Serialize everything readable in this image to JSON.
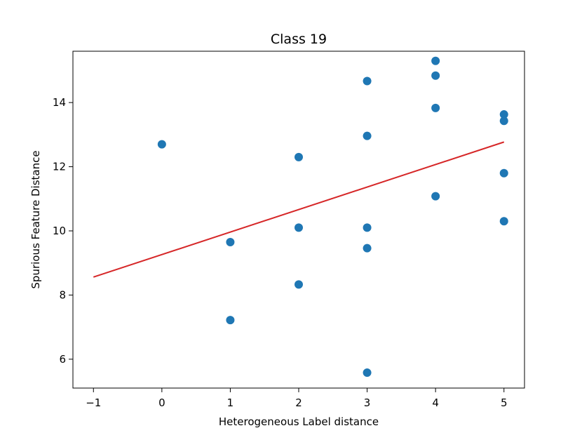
{
  "chart_data": {
    "type": "scatter",
    "title": "Class 19",
    "xlabel": "Heterogeneous Label distance",
    "ylabel": "Spurious Feature Distance",
    "xlim": [
      -1.3,
      5.3
    ],
    "ylim": [
      5.1,
      15.6
    ],
    "xticks": [
      -1,
      0,
      1,
      2,
      3,
      4,
      5
    ],
    "xtick_labels": [
      "−1",
      "0",
      "1",
      "2",
      "3",
      "4",
      "5"
    ],
    "yticks": [
      6,
      8,
      10,
      12,
      14
    ],
    "ytick_labels": [
      "6",
      "8",
      "10",
      "12",
      "14"
    ],
    "grid": false,
    "legend": "none",
    "colors": {
      "points": "#1f77b4",
      "fit_line": "#d62728"
    },
    "series": [
      {
        "type": "scatter",
        "points": [
          {
            "x": 0,
            "y": 12.7
          },
          {
            "x": 1,
            "y": 9.65
          },
          {
            "x": 1,
            "y": 7.22
          },
          {
            "x": 2,
            "y": 12.3
          },
          {
            "x": 2,
            "y": 10.1
          },
          {
            "x": 2,
            "y": 8.33
          },
          {
            "x": 3,
            "y": 14.67
          },
          {
            "x": 3,
            "y": 12.96
          },
          {
            "x": 3,
            "y": 10.1
          },
          {
            "x": 3,
            "y": 9.46
          },
          {
            "x": 3,
            "y": 5.58
          },
          {
            "x": 4,
            "y": 15.3
          },
          {
            "x": 4,
            "y": 14.84
          },
          {
            "x": 4,
            "y": 13.83
          },
          {
            "x": 4,
            "y": 11.08
          },
          {
            "x": 5,
            "y": 13.63
          },
          {
            "x": 5,
            "y": 13.43
          },
          {
            "x": 5,
            "y": 11.8
          },
          {
            "x": 5,
            "y": 10.3
          }
        ]
      },
      {
        "type": "line",
        "points": [
          {
            "x": -1,
            "y": 8.56
          },
          {
            "x": 5,
            "y": 12.77
          }
        ]
      }
    ]
  }
}
